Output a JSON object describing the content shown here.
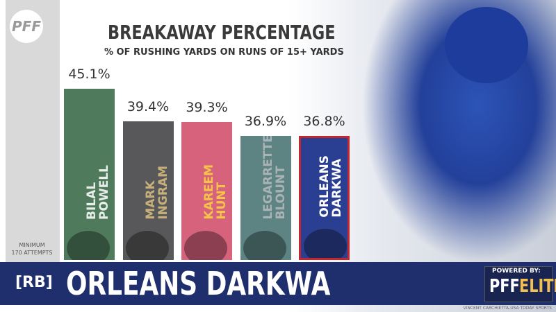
{
  "brand": "PFF",
  "chart_data": {
    "type": "bar",
    "title": "BREAKAWAY PERCENTAGE",
    "subtitle": "% OF RUSHING YARDS ON RUNS OF 15+ YARDS",
    "categories": [
      "BILAL POWELL",
      "MARK INGRAM",
      "KAREEM HUNT",
      "LEGARRETTE BLOUNT",
      "ORLEANS DARKWA"
    ],
    "values": [
      45.1,
      39.4,
      39.3,
      36.9,
      36.8
    ],
    "value_labels": [
      "45.1%",
      "39.4%",
      "39.3%",
      "36.9%",
      "36.8%"
    ],
    "colors": [
      "#4f7b5c",
      "#58585a",
      "#d6627c",
      "#5d8383",
      "#2b3f92"
    ],
    "label_colors": [
      "#e8eee9",
      "#c7b07a",
      "#f6c34a",
      "#a9b3b5",
      "#ffffff"
    ],
    "highlight": "ORLEANS DARKWA",
    "ylim": [
      15,
      46
    ]
  },
  "note": [
    "MINIMUM",
    "170 ATTEMPTS"
  ],
  "banner": {
    "position": "[RB]",
    "player": "ORLEANS DARKWA"
  },
  "powered": {
    "line1": "POWERED BY:",
    "brand": "PFF",
    "tier": "ELITE"
  },
  "credit": "VINCENT CARCHIETTA-USA TODAY SPORTS"
}
